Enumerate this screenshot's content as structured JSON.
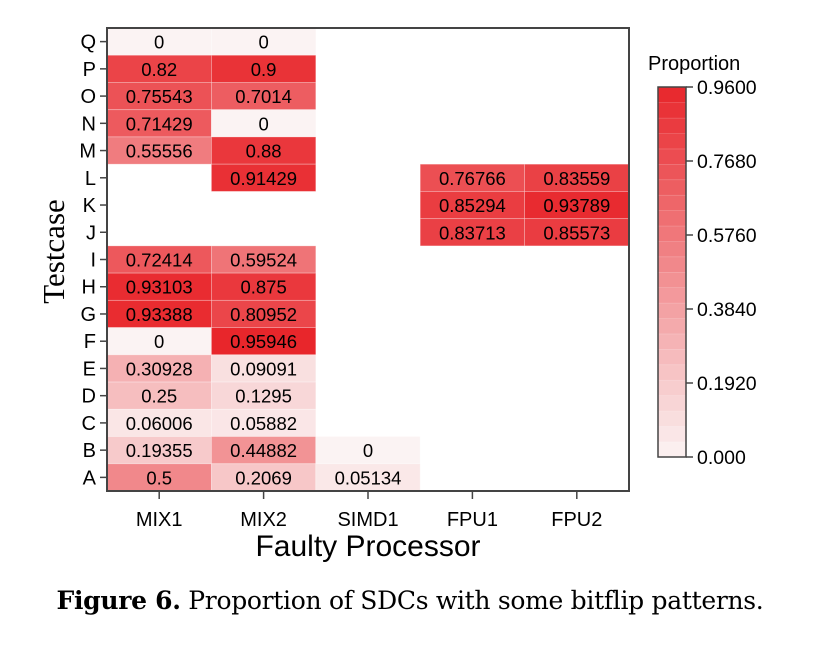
{
  "chart_data": {
    "type": "heatmap",
    "xlabel": "Faulty Processor",
    "ylabel": "Testcase",
    "x_categories": [
      "MIX1",
      "MIX2",
      "SIMD1",
      "FPU1",
      "FPU2"
    ],
    "y_categories": [
      "Q",
      "P",
      "O",
      "N",
      "M",
      "L",
      "K",
      "J",
      "I",
      "H",
      "G",
      "F",
      "E",
      "D",
      "C",
      "B",
      "A"
    ],
    "cells": [
      {
        "y": "Q",
        "x": "MIX1",
        "value": 0,
        "label": "0"
      },
      {
        "y": "Q",
        "x": "MIX2",
        "value": 0,
        "label": "0"
      },
      {
        "y": "P",
        "x": "MIX1",
        "value": 0.82,
        "label": "0.82"
      },
      {
        "y": "P",
        "x": "MIX2",
        "value": 0.9,
        "label": "0.9"
      },
      {
        "y": "O",
        "x": "MIX1",
        "value": 0.75543,
        "label": "0.75543"
      },
      {
        "y": "O",
        "x": "MIX2",
        "value": 0.7014,
        "label": "0.7014"
      },
      {
        "y": "N",
        "x": "MIX1",
        "value": 0.71429,
        "label": "0.71429"
      },
      {
        "y": "N",
        "x": "MIX2",
        "value": 0,
        "label": "0"
      },
      {
        "y": "M",
        "x": "MIX1",
        "value": 0.55556,
        "label": "0.55556"
      },
      {
        "y": "M",
        "x": "MIX2",
        "value": 0.88,
        "label": "0.88"
      },
      {
        "y": "L",
        "x": "MIX2",
        "value": 0.91429,
        "label": "0.91429"
      },
      {
        "y": "L",
        "x": "FPU1",
        "value": 0.76766,
        "label": "0.76766"
      },
      {
        "y": "L",
        "x": "FPU2",
        "value": 0.83559,
        "label": "0.83559"
      },
      {
        "y": "K",
        "x": "FPU1",
        "value": 0.85294,
        "label": "0.85294"
      },
      {
        "y": "K",
        "x": "FPU2",
        "value": 0.93789,
        "label": "0.93789"
      },
      {
        "y": "J",
        "x": "FPU1",
        "value": 0.83713,
        "label": "0.83713"
      },
      {
        "y": "J",
        "x": "FPU2",
        "value": 0.85573,
        "label": "0.85573"
      },
      {
        "y": "I",
        "x": "MIX1",
        "value": 0.72414,
        "label": "0.72414"
      },
      {
        "y": "I",
        "x": "MIX2",
        "value": 0.59524,
        "label": "0.59524"
      },
      {
        "y": "H",
        "x": "MIX1",
        "value": 0.93103,
        "label": "0.93103"
      },
      {
        "y": "H",
        "x": "MIX2",
        "value": 0.875,
        "label": "0.875"
      },
      {
        "y": "G",
        "x": "MIX1",
        "value": 0.93388,
        "label": "0.93388"
      },
      {
        "y": "G",
        "x": "MIX2",
        "value": 0.80952,
        "label": "0.80952"
      },
      {
        "y": "F",
        "x": "MIX1",
        "value": 0,
        "label": "0"
      },
      {
        "y": "F",
        "x": "MIX2",
        "value": 0.95946,
        "label": "0.95946"
      },
      {
        "y": "E",
        "x": "MIX1",
        "value": 0.30928,
        "label": "0.30928"
      },
      {
        "y": "E",
        "x": "MIX2",
        "value": 0.09091,
        "label": "0.09091"
      },
      {
        "y": "D",
        "x": "MIX1",
        "value": 0.25,
        "label": "0.25"
      },
      {
        "y": "D",
        "x": "MIX2",
        "value": 0.1295,
        "label": "0.1295"
      },
      {
        "y": "C",
        "x": "MIX1",
        "value": 0.06006,
        "label": "0.06006"
      },
      {
        "y": "C",
        "x": "MIX2",
        "value": 0.05882,
        "label": "0.05882"
      },
      {
        "y": "B",
        "x": "MIX1",
        "value": 0.19355,
        "label": "0.19355"
      },
      {
        "y": "B",
        "x": "MIX2",
        "value": 0.44882,
        "label": "0.44882"
      },
      {
        "y": "B",
        "x": "SIMD1",
        "value": 0,
        "label": "0"
      },
      {
        "y": "A",
        "x": "MIX1",
        "value": 0.5,
        "label": "0.5"
      },
      {
        "y": "A",
        "x": "MIX2",
        "value": 0.2069,
        "label": "0.2069"
      },
      {
        "y": "A",
        "x": "SIMD1",
        "value": 0.05134,
        "label": "0.05134"
      }
    ],
    "colorbar": {
      "title": "Proportion",
      "range": [
        0,
        0.96
      ],
      "ticks": [
        {
          "value": 0.96,
          "label": "0.9600"
        },
        {
          "value": 0.768,
          "label": "0.7680"
        },
        {
          "value": 0.576,
          "label": "0.5760"
        },
        {
          "value": 0.384,
          "label": "0.3840"
        },
        {
          "value": 0.192,
          "label": "0.1920"
        },
        {
          "value": 0,
          "label": "0.000"
        }
      ],
      "color_low": "#fbf3f3",
      "color_high": "#e8262b"
    },
    "grid": false
  },
  "caption": {
    "label": "Figure 6.",
    "text": " Proportion of SDCs with some bitflip patterns."
  }
}
